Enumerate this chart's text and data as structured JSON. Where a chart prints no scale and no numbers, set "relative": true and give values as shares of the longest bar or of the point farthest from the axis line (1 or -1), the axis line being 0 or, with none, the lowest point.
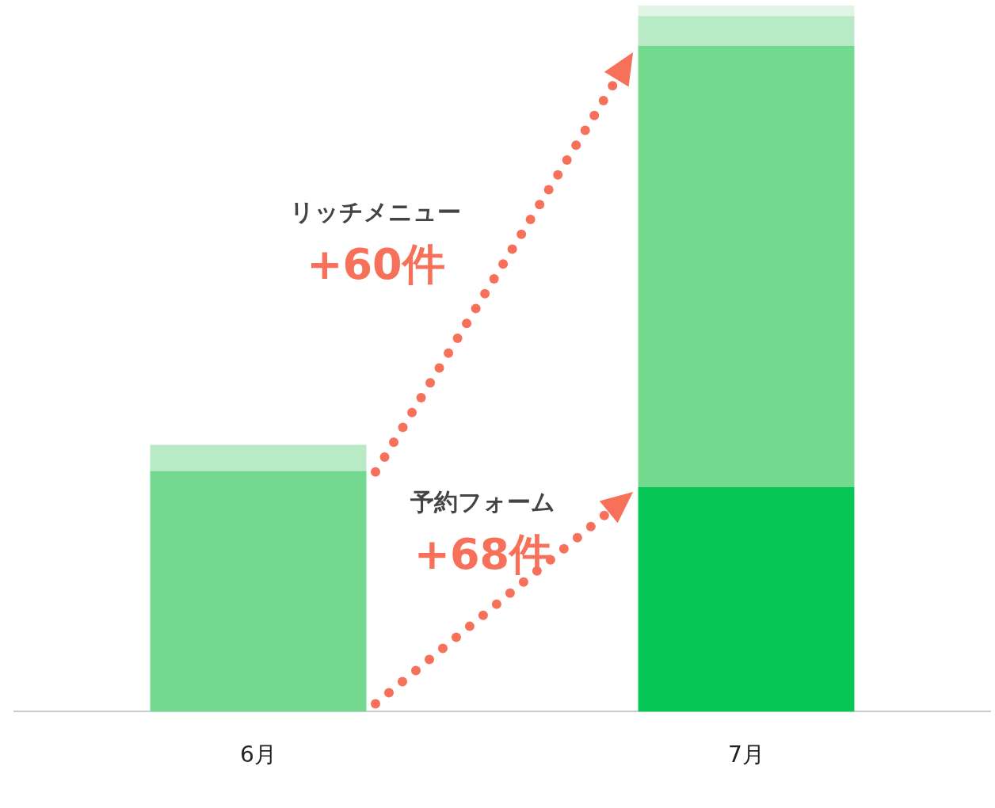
{
  "chart_data": {
    "type": "bar",
    "relative": true,
    "stacked": true,
    "categories": [
      "6月",
      "7月"
    ],
    "series": [
      {
        "color": "#06c755",
        "values": [
          0,
          0.318
        ]
      },
      {
        "color": "#72d98e",
        "values": [
          0.341,
          0.625
        ]
      },
      {
        "color": "#b9eac6",
        "values": [
          0.037,
          0.042
        ]
      },
      {
        "color": "#e0f5e6",
        "values": [
          0,
          0.015
        ]
      }
    ],
    "annotations": [
      "リッチメニュー",
      "+60件",
      "予約フォーム",
      "+68件"
    ],
    "legend": false,
    "grid": false
  }
}
